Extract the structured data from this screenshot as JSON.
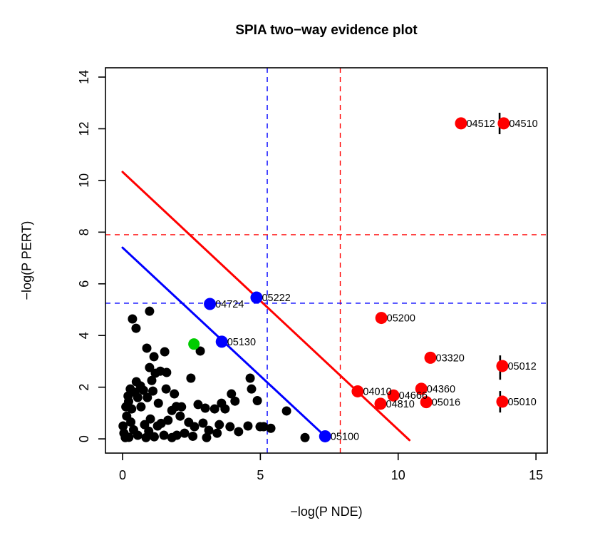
{
  "chart_data": {
    "type": "scatter",
    "title": "SPIA two−way evidence plot",
    "xlabel": "−log(P NDE)",
    "ylabel": "−log(P PERT)",
    "xlim": [
      -0.62,
      15.41
    ],
    "ylim": [
      -0.55,
      14.36
    ],
    "x_ticks": [
      0,
      5,
      10,
      15
    ],
    "y_ticks": [
      0,
      2,
      4,
      6,
      8,
      10,
      12,
      14
    ],
    "grid": false,
    "legend": "none",
    "colors": {
      "significant_both": "#FF0000",
      "significant_one": "#0000FF",
      "highlight": "#00CC00",
      "nonsignificant": "#000000",
      "axis": "#000000"
    },
    "threshold_lines": [
      {
        "orientation": "vertical",
        "value": 5.25,
        "color": "#0000FF",
        "style": "dashed"
      },
      {
        "orientation": "vertical",
        "value": 7.9,
        "color": "#FF0000",
        "style": "dashed"
      },
      {
        "orientation": "horizontal",
        "value": 5.25,
        "color": "#0000FF",
        "style": "dashed"
      },
      {
        "orientation": "horizontal",
        "value": 7.9,
        "color": "#FF0000",
        "style": "dashed"
      }
    ],
    "oneway_lines": [
      {
        "name": "red-diagonal",
        "color": "#FF0000",
        "from": [
          0,
          10.33
        ],
        "to": [
          10.41,
          -0.05
        ]
      },
      {
        "name": "blue-diagonal",
        "color": "#0000FF",
        "from": [
          0,
          7.4
        ],
        "to": [
          7.35,
          0.1
        ]
      }
    ],
    "boundary_markers": [
      {
        "x": 13.68,
        "y1": 11.79,
        "y2": 12.62
      },
      {
        "x": 13.7,
        "y1": 2.29,
        "y2": 3.23
      },
      {
        "x": 13.7,
        "y1": 1.02,
        "y2": 1.85
      }
    ],
    "labeled_points": [
      {
        "id": "04512",
        "x": 12.28,
        "y": 12.21,
        "group": "significant_both"
      },
      {
        "id": "04510",
        "x": 13.83,
        "y": 12.21,
        "group": "significant_both"
      },
      {
        "id": "05200",
        "x": 9.39,
        "y": 4.68,
        "group": "significant_both"
      },
      {
        "id": "03320",
        "x": 11.17,
        "y": 3.14,
        "group": "significant_both"
      },
      {
        "id": "05012",
        "x": 13.78,
        "y": 2.82,
        "group": "significant_both"
      },
      {
        "id": "05010",
        "x": 13.78,
        "y": 1.44,
        "group": "significant_both"
      },
      {
        "id": "04010",
        "x": 8.53,
        "y": 1.84,
        "group": "significant_both"
      },
      {
        "id": "04360",
        "x": 10.84,
        "y": 1.94,
        "group": "significant_both"
      },
      {
        "id": "04666",
        "x": 9.83,
        "y": 1.68,
        "group": "significant_both"
      },
      {
        "id": "05016",
        "x": 11.02,
        "y": 1.42,
        "group": "significant_both"
      },
      {
        "id": "04810",
        "x": 9.36,
        "y": 1.36,
        "group": "significant_both"
      },
      {
        "id": "05222",
        "x": 4.86,
        "y": 5.47,
        "group": "significant_one"
      },
      {
        "id": "04724",
        "x": 3.17,
        "y": 5.22,
        "group": "significant_one"
      },
      {
        "id": "05130",
        "x": 3.6,
        "y": 3.76,
        "group": "significant_one"
      },
      {
        "id": "05100",
        "x": 7.35,
        "y": 0.1,
        "group": "significant_one"
      }
    ],
    "green_point": {
      "x": 2.59,
      "y": 3.67
    },
    "black_points": [
      [
        0.98,
        4.94
      ],
      [
        0.36,
        4.64
      ],
      [
        0.49,
        4.28
      ],
      [
        0.88,
        3.51
      ],
      [
        1.14,
        3.18
      ],
      [
        1.53,
        3.37
      ],
      [
        0.98,
        2.76
      ],
      [
        1.37,
        2.62
      ],
      [
        1.6,
        2.57
      ],
      [
        2.82,
        3.4
      ],
      [
        1.19,
        2.54
      ],
      [
        2.48,
        2.35
      ],
      [
        0.5,
        2.21
      ],
      [
        1.06,
        2.26
      ],
      [
        1.58,
        1.93
      ],
      [
        1.88,
        1.74
      ],
      [
        0.28,
        1.93
      ],
      [
        0.76,
        1.88
      ],
      [
        0.55,
        1.6
      ],
      [
        0.2,
        1.66
      ],
      [
        0.12,
        1.24
      ],
      [
        0.67,
        1.24
      ],
      [
        0.33,
        1.16
      ],
      [
        1.79,
        1.1
      ],
      [
        2.14,
        1.24
      ],
      [
        2.74,
        1.33
      ],
      [
        3.0,
        1.19
      ],
      [
        3.34,
        1.16
      ],
      [
        3.95,
        1.74
      ],
      [
        4.08,
        1.46
      ],
      [
        4.63,
        2.35
      ],
      [
        4.68,
        1.93
      ],
      [
        4.89,
        1.48
      ],
      [
        3.59,
        1.38
      ],
      [
        3.72,
        1.16
      ],
      [
        1.01,
        0.77
      ],
      [
        0.8,
        0.55
      ],
      [
        1.27,
        0.5
      ],
      [
        2.09,
        0.88
      ],
      [
        2.4,
        0.64
      ],
      [
        2.61,
        0.47
      ],
      [
        2.92,
        0.61
      ],
      [
        3.13,
        0.33
      ],
      [
        1.97,
        0.14
      ],
      [
        1.79,
        0.05
      ],
      [
        1.5,
        0.14
      ],
      [
        0.02,
        0.5
      ],
      [
        0.05,
        0.22
      ],
      [
        0.23,
        0.06
      ],
      [
        0.55,
        0.14
      ],
      [
        3.51,
        0.55
      ],
      [
        3.43,
        0.22
      ],
      [
        3.9,
        0.47
      ],
      [
        4.21,
        0.28
      ],
      [
        4.55,
        0.5
      ],
      [
        4.99,
        0.47
      ],
      [
        5.12,
        0.47
      ],
      [
        5.95,
        1.08
      ],
      [
        5.38,
        0.41
      ],
      [
        6.62,
        0.05
      ],
      [
        0.45,
        1.8
      ],
      [
        0.9,
        1.6
      ],
      [
        1.3,
        1.38
      ],
      [
        0.15,
        0.88
      ],
      [
        0.95,
        0.3
      ],
      [
        1.65,
        0.72
      ],
      [
        2.25,
        0.22
      ],
      [
        1.15,
        0.08
      ],
      [
        0.4,
        0.35
      ],
      [
        1.95,
        1.25
      ],
      [
        0.65,
        2.05
      ],
      [
        1.1,
        1.85
      ],
      [
        0.3,
        0.65
      ],
      [
        2.55,
        0.1
      ],
      [
        3.05,
        0.05
      ],
      [
        0.85,
        0.05
      ],
      [
        0.1,
        0.05
      ],
      [
        1.4,
        0.6
      ],
      [
        0.22,
        1.45
      ]
    ]
  }
}
